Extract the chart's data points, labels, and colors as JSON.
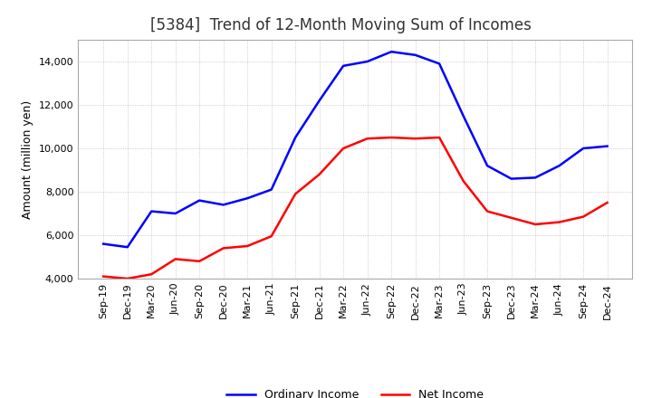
{
  "title": "[5384]  Trend of 12-Month Moving Sum of Incomes",
  "ylabel": "Amount (million yen)",
  "x_labels": [
    "Sep-19",
    "Dec-19",
    "Mar-20",
    "Jun-20",
    "Sep-20",
    "Dec-20",
    "Mar-21",
    "Jun-21",
    "Sep-21",
    "Dec-21",
    "Mar-22",
    "Jun-22",
    "Sep-22",
    "Dec-22",
    "Mar-23",
    "Jun-23",
    "Sep-23",
    "Dec-23",
    "Mar-24",
    "Jun-24",
    "Sep-24",
    "Dec-24"
  ],
  "ordinary_income": [
    5600,
    5450,
    7100,
    7000,
    7600,
    7400,
    7700,
    8100,
    10500,
    12200,
    13800,
    14000,
    14450,
    14300,
    13900,
    11500,
    9200,
    8600,
    8650,
    9200,
    10000,
    10100
  ],
  "net_income": [
    4100,
    4000,
    4200,
    4900,
    4800,
    5400,
    5500,
    5950,
    7900,
    8800,
    10000,
    10450,
    10500,
    10450,
    10500,
    8500,
    7100,
    6800,
    6500,
    6600,
    6850,
    7500
  ],
  "ordinary_color": "#0000FF",
  "net_color": "#FF0000",
  "ylim": [
    4000,
    15000
  ],
  "yticks": [
    4000,
    6000,
    8000,
    10000,
    12000,
    14000
  ],
  "background_color": "#FFFFFF",
  "grid_color": "#999999",
  "title_fontsize": 12,
  "title_fontweight": "normal",
  "axis_fontsize": 9,
  "tick_fontsize": 8,
  "legend_fontsize": 9,
  "line_width": 1.8
}
